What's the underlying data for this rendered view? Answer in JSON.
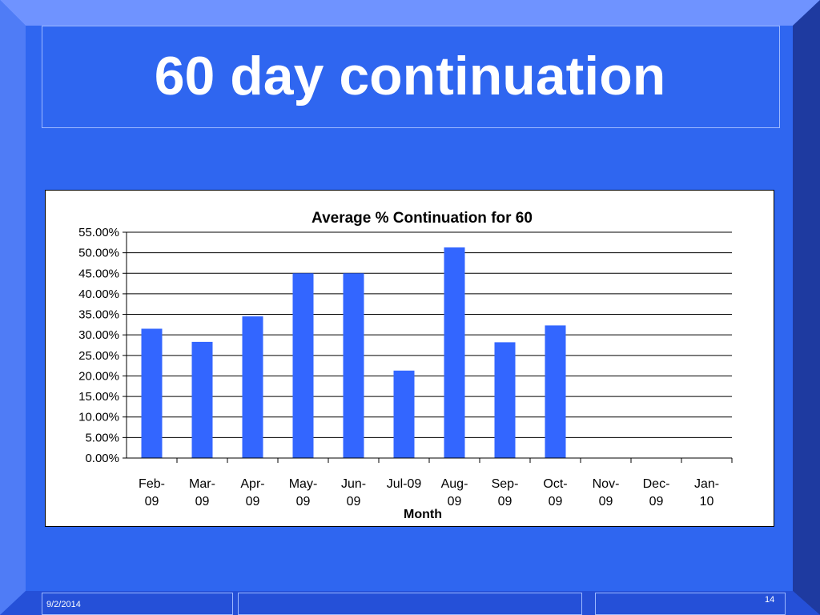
{
  "slide": {
    "title": "60 day continuation",
    "date": "9/2/2014",
    "page_number": "14"
  },
  "colors": {
    "background": "#2f66f0",
    "bar": "#3366ff",
    "frame_light": "#6f93ff",
    "frame_dark": "#1e3aa0"
  },
  "chart_data": {
    "type": "bar",
    "title": "Average % Continuation for 60",
    "xlabel": "Month",
    "ylabel": "",
    "categories": [
      [
        "Feb-",
        "09"
      ],
      [
        "Mar-",
        "09"
      ],
      [
        "Apr-",
        "09"
      ],
      [
        "May-",
        "09"
      ],
      [
        "Jun-",
        "09"
      ],
      [
        "Jul-09",
        ""
      ],
      [
        "Aug-",
        "09"
      ],
      [
        "Sep-",
        "09"
      ],
      [
        "Oct-",
        "09"
      ],
      [
        "Nov-",
        "09"
      ],
      [
        "Dec-",
        "09"
      ],
      [
        "Jan-",
        "10"
      ]
    ],
    "values": [
      31.5,
      28.3,
      34.5,
      45.0,
      45.0,
      21.3,
      51.3,
      28.2,
      32.3,
      null,
      null,
      null
    ],
    "ylim": [
      0,
      55
    ],
    "yticks": [
      "0.00%",
      "5.00%",
      "10.00%",
      "15.00%",
      "20.00%",
      "25.00%",
      "30.00%",
      "35.00%",
      "40.00%",
      "45.00%",
      "50.00%",
      "55.00%"
    ],
    "grid": true,
    "legend": "none"
  }
}
